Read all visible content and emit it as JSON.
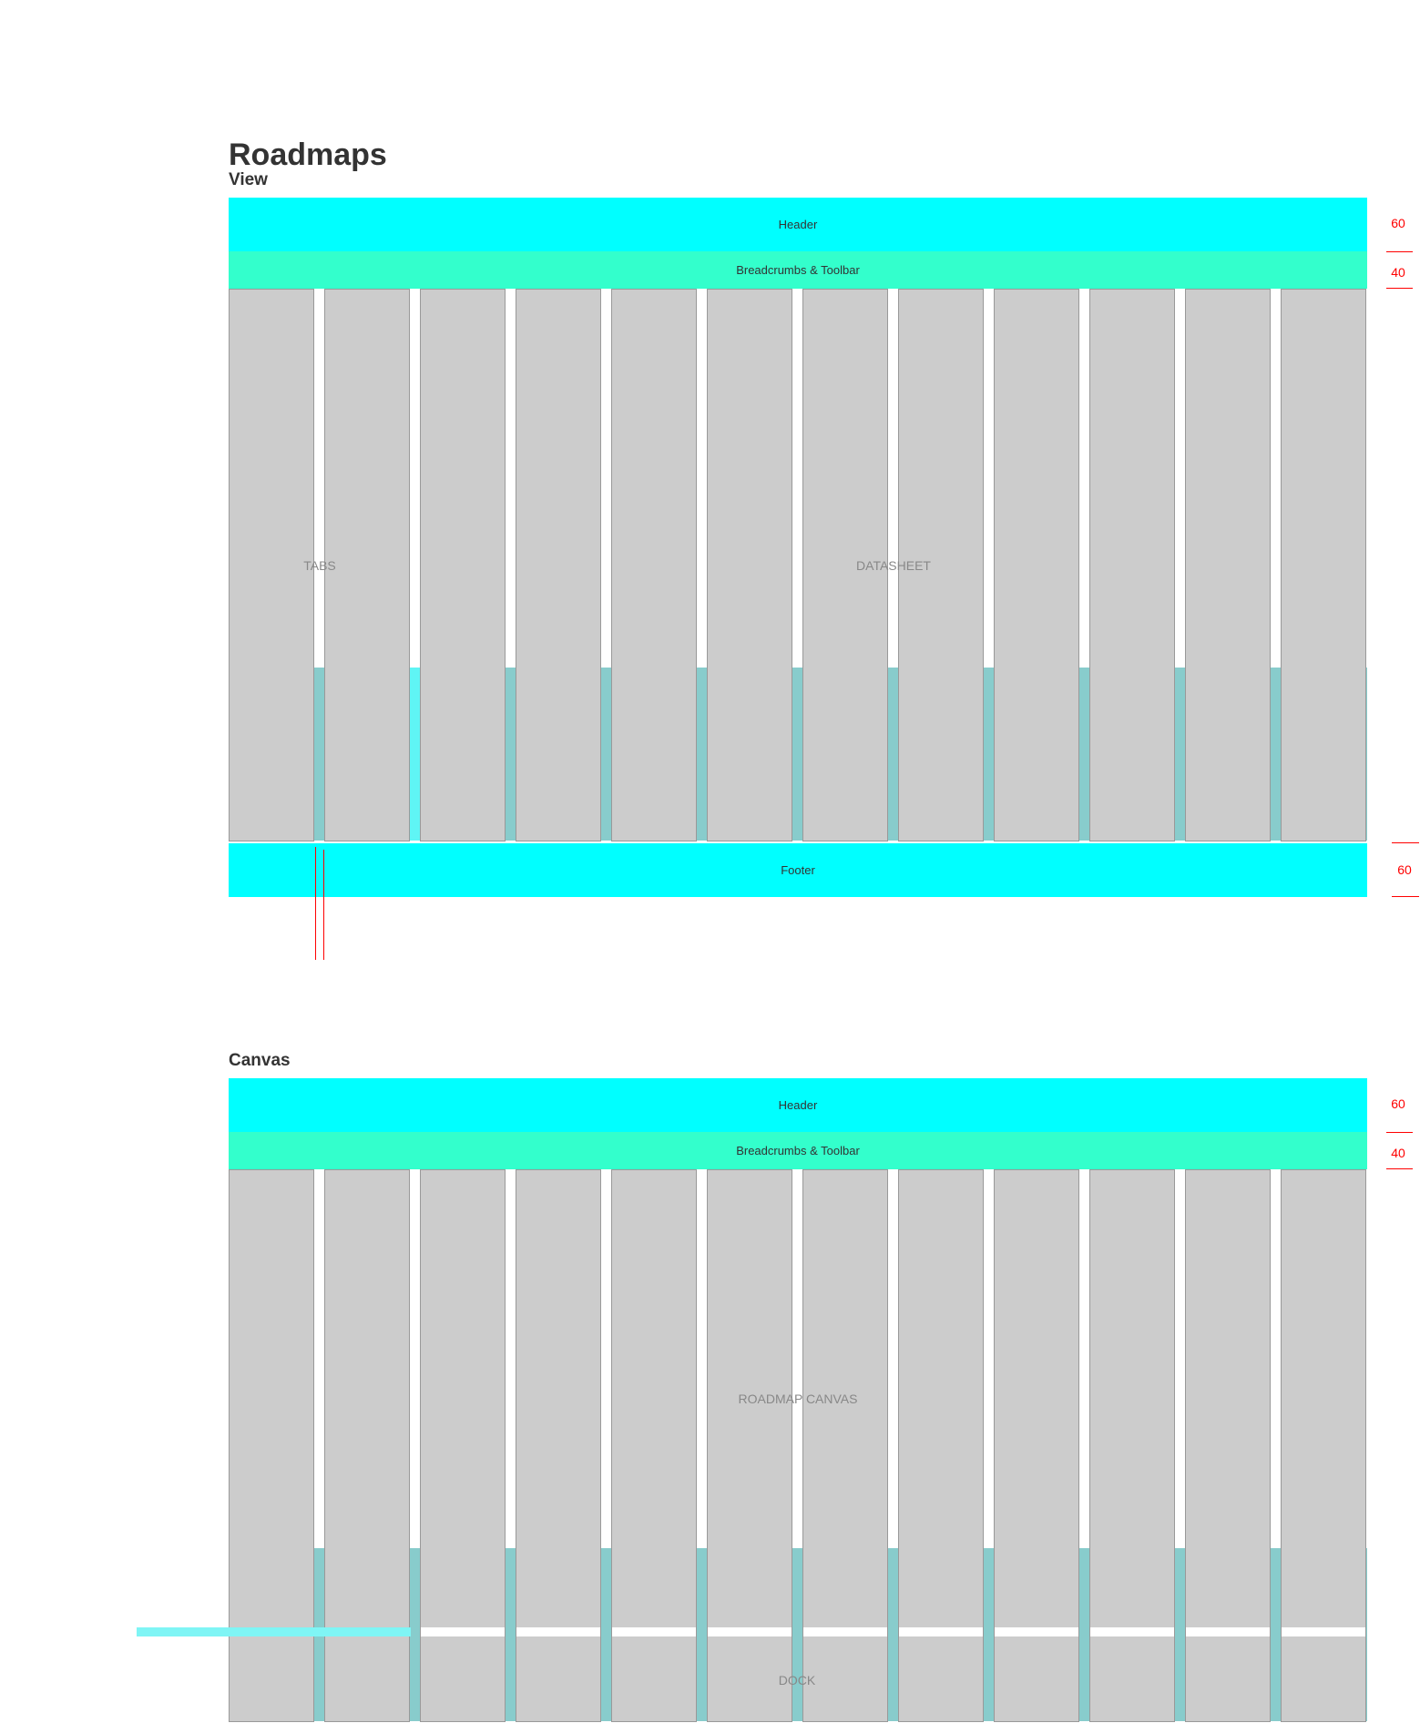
{
  "title": "Roadmaps",
  "view": {
    "section_title": "View",
    "header_label": "Header",
    "breadcrumbs_label": "Breadcrumbs & Toolbar",
    "tabs_label": "TABS",
    "datasheet_label": "DATASHEET",
    "footer_label": "Footer",
    "header_height_label": "60",
    "breadcrumbs_height_label": "40",
    "footer_height_label": "60"
  },
  "canvas": {
    "section_title": "Canvas",
    "header_label": "Header",
    "breadcrumbs_label": "Breadcrumbs & Toolbar",
    "canvas_label": "ROADMAP CANVAS",
    "dock_label": "DOCK",
    "header_height_label": "60",
    "breadcrumbs_height_label": "40"
  },
  "colors": {
    "header": "#00ffff",
    "breadcrumbs": "#33ffcc",
    "column": "#cccccc",
    "gutter": "#88cccc",
    "annotation": "#ff0000"
  }
}
